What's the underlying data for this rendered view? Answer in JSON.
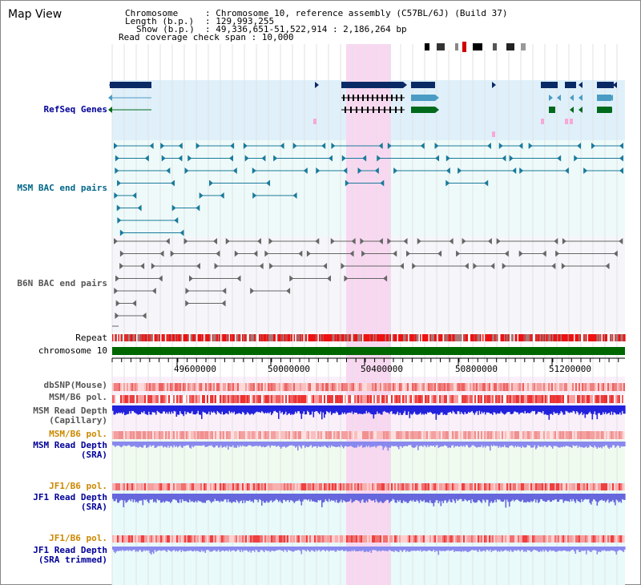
{
  "page_title": "Map View",
  "info": {
    "chromosome_key": "Chromosome",
    "chromosome_val": ": Chromosome 10, reference assembly (C57BL/6J) (Build 37)",
    "length_key": "Length (b.p.)",
    "length_val": ": 129,993,255",
    "show_key": "Show (b.p.)",
    "show_val": ": 49,336,651-51,522,914 : 2,186,264 bp",
    "coverage": "Read coverage check span : 10,000"
  },
  "tracks": {
    "refseq": "RefSeq Genes",
    "msm_bac": "MSM BAC end pairs",
    "b6n_bac": "B6N BAC end pairs",
    "repeat": "Repeat",
    "chromosome": "chromosome 10",
    "dbsnp": "dbSNP(Mouse)",
    "msm_b6_pol": "MSM/B6 pol.",
    "msm_depth_cap_1": "MSM Read Depth",
    "msm_depth_cap_2": "(Capillary)",
    "msm_b6_pol_sra": "MSM/B6 pol.",
    "msm_depth_sra_1": "MSM Read Depth",
    "msm_depth_sra_2": "(SRA)",
    "jf1_b6_pol_1": "JF1/B6 pol.",
    "jf1_depth_1": "JF1 Read Depth",
    "jf1_depth_2": "(SRA)",
    "jf1_b6_pol_2": "JF1/B6 pol.",
    "jf1_trim_1": "JF1 Read Depth",
    "jf1_trim_2": "(SRA trimmed)"
  },
  "axis_ticks": [
    "49600000",
    "50000000",
    "50400000",
    "50800000",
    "51200000"
  ],
  "colors": {
    "refseq_bg": "#dff0fa",
    "bac_bg": "#eefafa",
    "highlight": "#f8d8f0",
    "gene_dark": "#0a2a66",
    "gene_mid": "#4b9cc4",
    "gene_green": "#006a1c",
    "chrom_green": "#006600",
    "msm_label": "#006688",
    "b6n_label": "#555555",
    "blue_label": "#000099",
    "orange_label": "#cc8800",
    "depth_blue": "#2222dd",
    "depth_light": "#8888ee"
  }
}
